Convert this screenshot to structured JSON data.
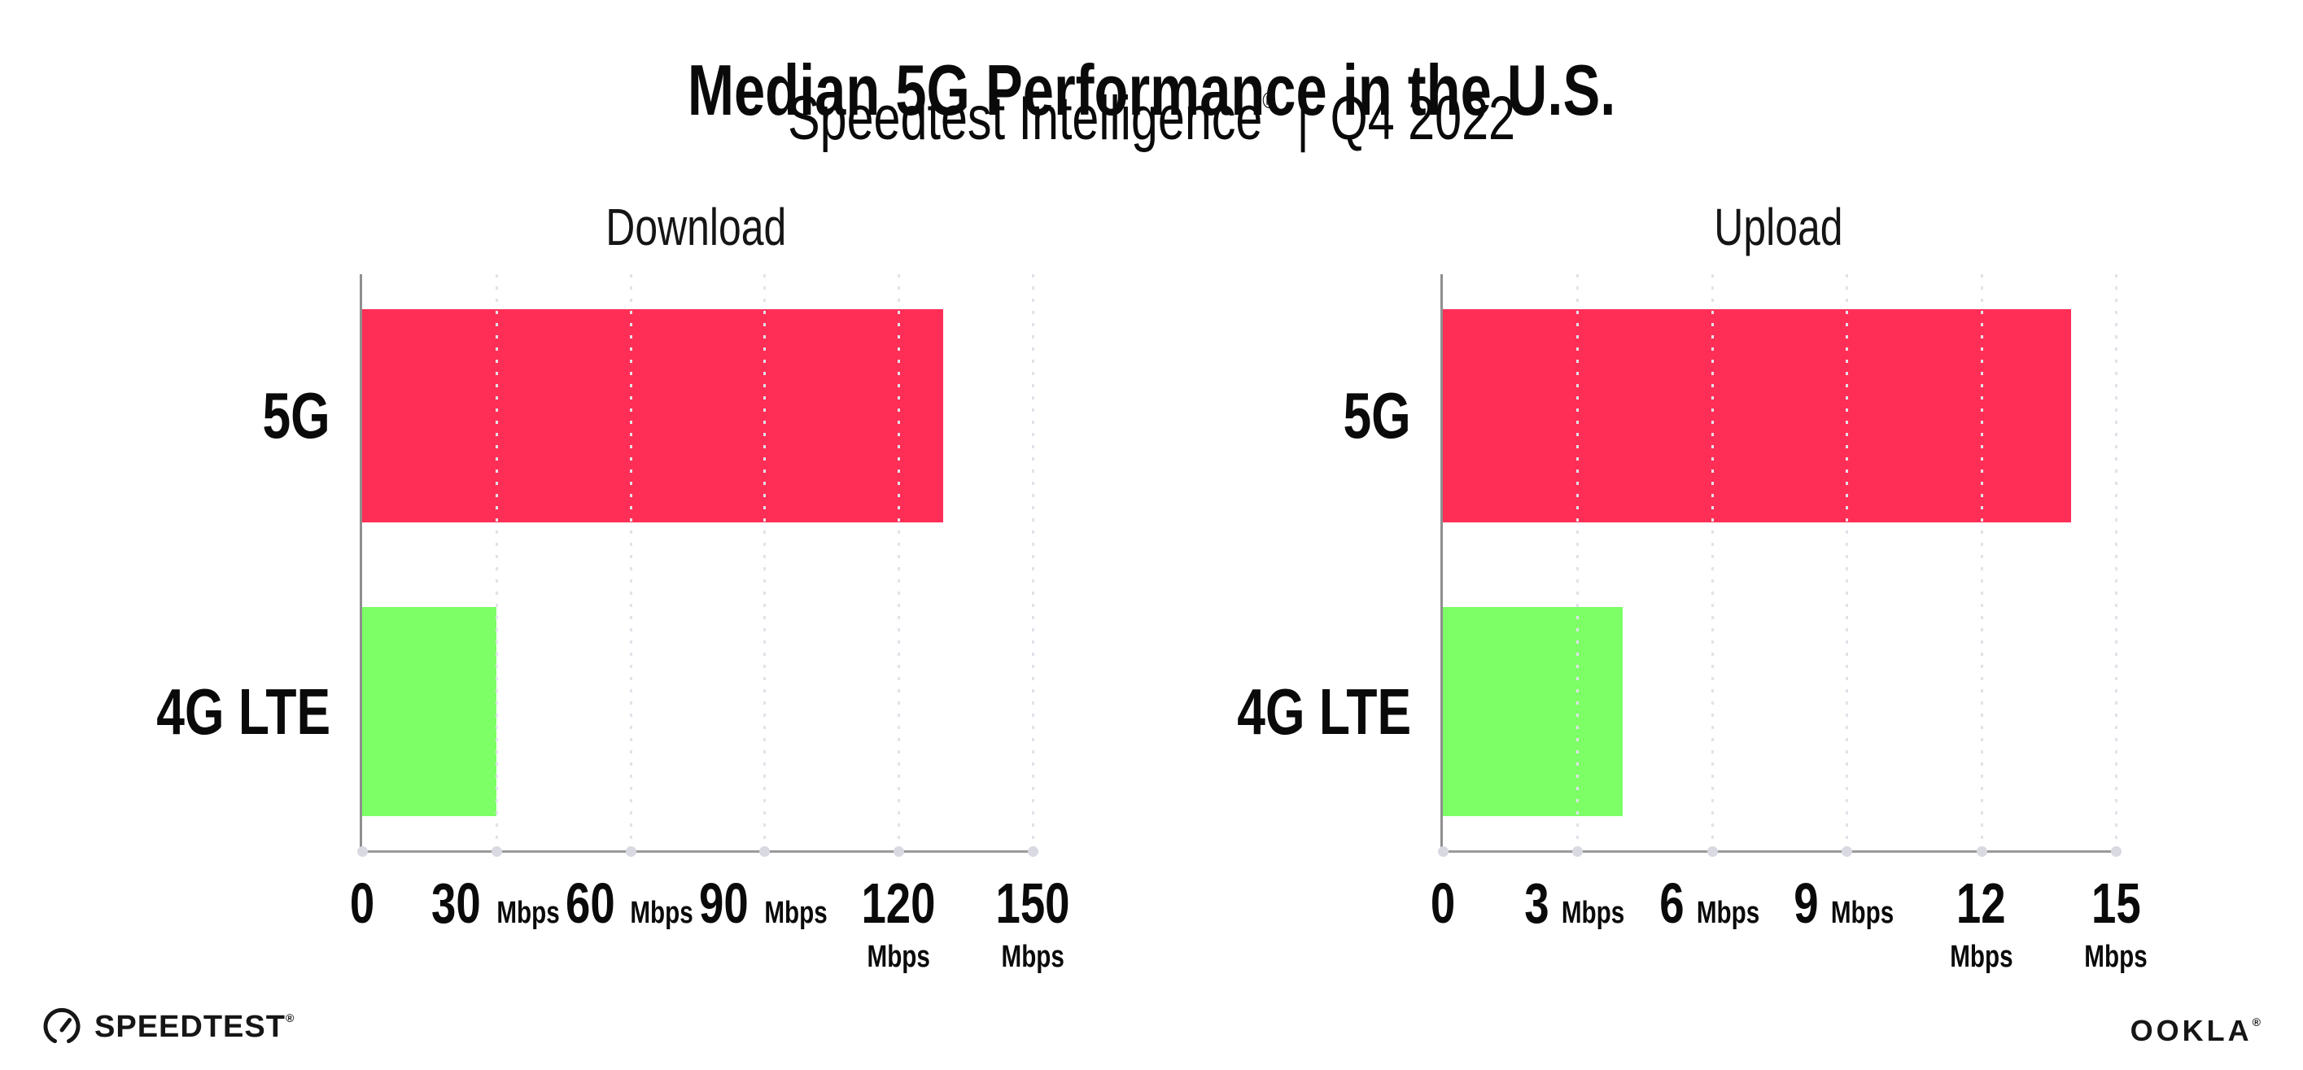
{
  "header": {
    "title": "Median 5G Performance in the U.S.",
    "subtitle_brand": "Speedtest Intelligence",
    "subtitle_mark": "®",
    "subtitle_sep": "|",
    "subtitle_period": "Q4 2022"
  },
  "chart_data": [
    {
      "type": "bar",
      "title": "Download",
      "orientation": "horizontal",
      "categories": [
        "5G",
        "4G LTE"
      ],
      "values": [
        130,
        30
      ],
      "unit": "Mbps",
      "xlim": [
        0,
        150
      ],
      "xticks": [
        0,
        30,
        60,
        90,
        120,
        150
      ],
      "tick_unit_label": "Mbps",
      "bar_colors": [
        "#FF2E56",
        "#7DFF66"
      ],
      "grid": "vertical-dotted",
      "legend": "none"
    },
    {
      "type": "bar",
      "title": "Upload",
      "orientation": "horizontal",
      "categories": [
        "5G",
        "4G LTE"
      ],
      "values": [
        14,
        4
      ],
      "unit": "Mbps",
      "xlim": [
        0,
        15
      ],
      "xticks": [
        0,
        3,
        6,
        9,
        12,
        15
      ],
      "tick_unit_label": "Mbps",
      "bar_colors": [
        "#FF2E56",
        "#7DFF66"
      ],
      "grid": "vertical-dotted",
      "legend": "none"
    }
  ],
  "footer": {
    "speedtest_label": "SPEEDTEST",
    "speedtest_mark": "®",
    "ookla_label": "OOKLA",
    "ookla_mark": "®"
  },
  "colors": {
    "bar_5g": "#FF2E56",
    "bar_4g_lte": "#7DFF66",
    "axis": "#8f8f8f",
    "gridline": "#e2e2ea",
    "text": "#0a0a0a",
    "background": "#ffffff"
  }
}
